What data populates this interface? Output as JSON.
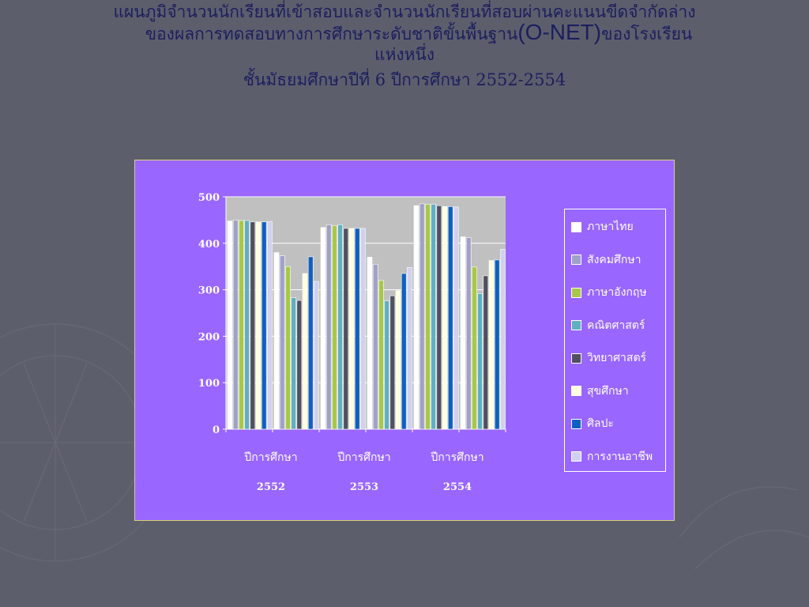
{
  "title": {
    "line1": "แผนภูมิจำนวนนักเรียนที่เข้าสอบและจำนวนนักเรียนที่สอบผ่านคะแนนขีดจำกัดล่าง",
    "line2_prefix": "ของผลการทดสอบทางการศึกษาระดับชาติขั้นพื้นฐาน",
    "line2_acronym": "(O-NET)",
    "line2_suffix": "ของโรงเรียน",
    "line3": "แห่งหนึ่ง",
    "line4": "ชั้นมัธยมศึกษาปีที่ 6 ปีการศึกษา 2552-2554"
  },
  "colors": {
    "page_background": "#5d5e6c",
    "title": "#1c1e5e",
    "panel": "#9966ff",
    "plot_area": "#c0c0c0"
  },
  "chart_data": {
    "type": "bar",
    "categories": [
      {
        "label": "ปีการศึกษา",
        "year": "2552"
      },
      {
        "label": "ปีการศึกษา",
        "year": "2553"
      },
      {
        "label": "ปีการศึกษา",
        "year": "2554"
      }
    ],
    "ylim": [
      0,
      500
    ],
    "yticks": [
      "0",
      "100",
      "200",
      "300",
      "400",
      "500"
    ],
    "grid": true,
    "legend_position": "right",
    "series": [
      {
        "name": "ภาษาไทย",
        "color": "#ffffff",
        "values": [
          448,
          434,
          481
        ]
      },
      {
        "name": "สังคมศึกษา",
        "color": "#a0a0c8",
        "values": [
          450,
          440,
          485
        ]
      },
      {
        "name": "ภาษาอังกฤษ",
        "color": "#a8c848",
        "values": [
          449,
          438,
          484
        ]
      },
      {
        "name": "คณิตศาสตร์",
        "color": "#60b0c0",
        "values": [
          449,
          440,
          484
        ]
      },
      {
        "name": "วิทยาศาสตร์",
        "color": "#505060",
        "values": [
          446,
          432,
          481
        ]
      },
      {
        "name": "สุขศึกษา",
        "color": "#ffffe0",
        "values": [
          446,
          432,
          479
        ]
      },
      {
        "name": "ศิลปะ",
        "color": "#1060c0",
        "values": [
          446,
          432,
          479
        ]
      },
      {
        "name": "การงานอาชีพ",
        "color": "#d0d0f0",
        "values": [
          447,
          432,
          478
        ]
      }
    ],
    "passed_series": [
      {
        "name": "ภาษาไทย",
        "values": [
          380,
          370,
          414
        ]
      },
      {
        "name": "สังคมศึกษา",
        "values": [
          373,
          355,
          412
        ]
      },
      {
        "name": "ภาษาอังกฤษ",
        "values": [
          350,
          320,
          349
        ]
      },
      {
        "name": "คณิตศาสตร์",
        "values": [
          283,
          276,
          292
        ]
      },
      {
        "name": "วิทยาศาสตร์",
        "values": [
          277,
          287,
          330
        ]
      },
      {
        "name": "สุขศึกษา",
        "values": [
          335,
          298,
          363
        ]
      },
      {
        "name": "ศิลปะ",
        "values": [
          371,
          335,
          364
        ]
      },
      {
        "name": "การงานอาชีพ",
        "values": [
          318,
          348,
          387
        ]
      }
    ]
  }
}
